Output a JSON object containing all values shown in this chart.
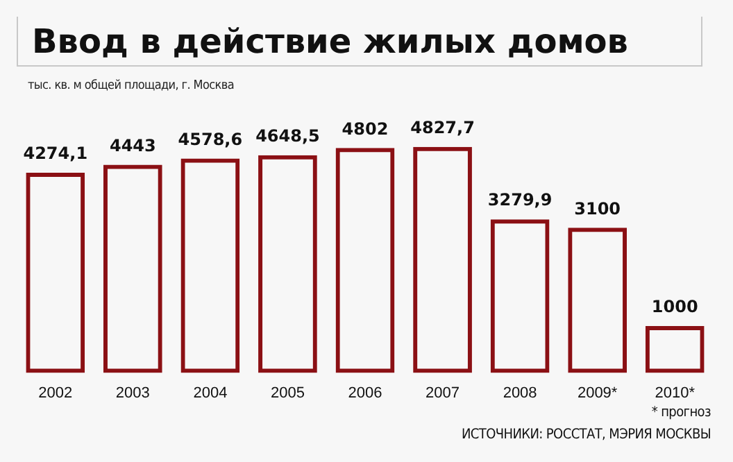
{
  "chart_data": {
    "type": "bar",
    "title": "Ввод в действие жилых домов",
    "subtitle": "тыс. кв. м общей площади, г. Москва",
    "categories": [
      "2002",
      "2003",
      "2004",
      "2005",
      "2006",
      "2007",
      "2008",
      "2009*",
      "2010*"
    ],
    "values": [
      4274.1,
      4443,
      4578.6,
      4648.5,
      4802,
      4827.7,
      3279.9,
      3100,
      1000
    ],
    "value_labels": [
      "4274,1",
      "4443",
      "4578,6",
      "4648,5",
      "4802",
      "4827,7",
      "3279,9",
      "3100",
      "1000"
    ],
    "color": "#8b1014",
    "grid": false,
    "legend": false,
    "tick_labels": "x",
    "annotations": [
      "* прогноз",
      "ИСТОЧНИКИ: РОССТАТ, МЭРИЯ МОСКВЫ"
    ]
  }
}
